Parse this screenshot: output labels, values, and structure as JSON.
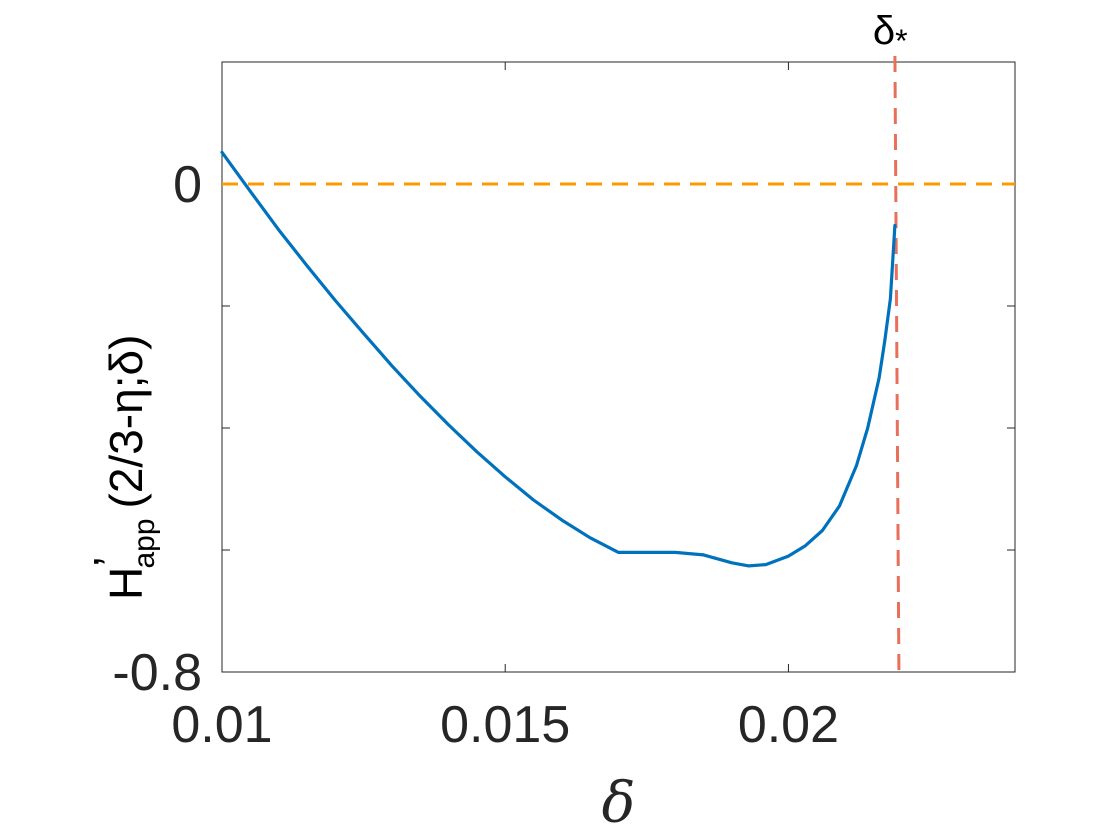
{
  "chart_data": {
    "type": "line",
    "xlabel": "δ",
    "ylabel": {
      "main": "H",
      "prime": "’",
      "subscript": "app",
      "argument": "(2/3-η;δ)"
    },
    "xlim": [
      0.01,
      0.024
    ],
    "ylim": [
      -0.8,
      0.2
    ],
    "xticks": [
      0.01,
      0.015,
      0.02
    ],
    "xtick_labels": [
      "0.01",
      "0.015",
      "0.02"
    ],
    "yticks": [
      -0.8,
      -0.6,
      -0.4,
      -0.2,
      0,
      0.2
    ],
    "ytick_labels": [
      "-0.8",
      "",
      "",
      "",
      "0",
      ""
    ],
    "grid": false,
    "series": [
      {
        "color": "#0072BD",
        "style": "solid",
        "x": [
          0.01,
          0.0105,
          0.011,
          0.0115,
          0.012,
          0.0125,
          0.013,
          0.0135,
          0.014,
          0.0145,
          0.015,
          0.0155,
          0.016,
          0.0165,
          0.017,
          0.0175,
          0.018,
          0.0185,
          0.019,
          0.0193,
          0.0196,
          0.02,
          0.0203,
          0.0206,
          0.0209,
          0.0212,
          0.0214,
          0.0216,
          0.0217,
          0.0218,
          0.02188
        ],
        "y": [
          0.052,
          -0.012,
          -0.075,
          -0.134,
          -0.191,
          -0.245,
          -0.298,
          -0.348,
          -0.395,
          -0.439,
          -0.48,
          -0.518,
          -0.551,
          -0.58,
          -0.604,
          -0.604,
          -0.604,
          -0.608,
          -0.621,
          -0.626,
          -0.624,
          -0.61,
          -0.593,
          -0.568,
          -0.528,
          -0.462,
          -0.4,
          -0.318,
          -0.258,
          -0.188,
          -0.068
        ]
      }
    ],
    "reference_lines": [
      {
        "orientation": "horizontal",
        "value": 0,
        "color": "#FF9900",
        "style": "dashed"
      },
      {
        "orientation": "vertical",
        "value": 0.02188,
        "color": "#E8705A",
        "style": "dashed",
        "label": "δ*"
      }
    ],
    "annotations": [
      {
        "text": "δ",
        "subscript": "*"
      }
    ]
  }
}
